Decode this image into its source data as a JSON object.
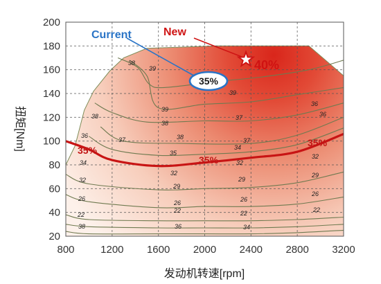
{
  "chart_data": {
    "type": "contour",
    "xlabel": "发动机转速[rpm]",
    "ylabel": "扭矩[Nm]",
    "xlim": [
      800,
      3200
    ],
    "ylim": [
      20,
      200
    ],
    "xticks": [
      "800",
      "1200",
      "1600",
      "2000",
      "2400",
      "2800",
      "3200"
    ],
    "yticks": [
      "20",
      "40",
      "60",
      "80",
      "100",
      "120",
      "140",
      "160",
      "180",
      "200"
    ],
    "grid": true,
    "colors": {
      "hot": "#d9261b",
      "cool": "#fdf1ea",
      "highlight_line": "#c81414",
      "current_bubble": "#2a74c6"
    },
    "annotations": {
      "current": "Current",
      "new": "New",
      "current_value": "35%",
      "new_value": "40%",
      "pct_left": "35%",
      "pct_mid": "35%",
      "pct_right": "35%"
    },
    "contours": [
      {
        "label": "22",
        "points": [
          [
            800,
            24
          ],
          [
            1000,
            22
          ],
          [
            1600,
            22
          ],
          [
            2000,
            22
          ],
          [
            2400,
            22
          ],
          [
            2800,
            23
          ],
          [
            3200,
            25
          ]
        ]
      },
      {
        "label": "26",
        "points": [
          [
            800,
            30
          ],
          [
            1000,
            28
          ],
          [
            1600,
            27
          ],
          [
            2000,
            27
          ],
          [
            2400,
            27
          ],
          [
            2800,
            28
          ],
          [
            3200,
            30
          ]
        ]
      },
      {
        "label": "29",
        "points": [
          [
            800,
            38
          ],
          [
            1000,
            34
          ],
          [
            1600,
            33
          ],
          [
            2000,
            33
          ],
          [
            2400,
            33
          ],
          [
            2800,
            34
          ],
          [
            3200,
            36
          ]
        ]
      },
      {
        "label": "32",
        "points": [
          [
            800,
            55
          ],
          [
            1000,
            49
          ],
          [
            1600,
            44
          ],
          [
            2000,
            45
          ],
          [
            2400,
            45
          ],
          [
            2800,
            47
          ],
          [
            3200,
            53
          ]
        ]
      },
      {
        "label": "34",
        "points": [
          [
            800,
            72
          ],
          [
            1000,
            64
          ],
          [
            1600,
            59
          ],
          [
            2000,
            60
          ],
          [
            2400,
            61
          ],
          [
            2800,
            65
          ],
          [
            3200,
            74
          ]
        ]
      },
      {
        "label": "36",
        "points": [
          [
            1000,
            104
          ],
          [
            1200,
            93
          ],
          [
            1600,
            88
          ],
          [
            2000,
            89
          ],
          [
            2400,
            91
          ],
          [
            2800,
            97
          ],
          [
            3200,
            111
          ]
        ]
      },
      {
        "label": "37",
        "points": [
          [
            1100,
            112
          ],
          [
            1300,
            100
          ],
          [
            1800,
            98
          ],
          [
            2400,
            98
          ],
          [
            2800,
            105
          ],
          [
            3200,
            120
          ]
        ]
      },
      {
        "label": "38",
        "points": [
          [
            1050,
            132
          ],
          [
            1200,
            124
          ],
          [
            1500,
            116
          ],
          [
            2000,
            117
          ],
          [
            2400,
            117
          ],
          [
            2800,
            122
          ],
          [
            3200,
            132
          ]
        ]
      },
      {
        "label": "39",
        "points": [
          [
            1350,
            168
          ],
          [
            1500,
            155
          ],
          [
            1600,
            128
          ],
          [
            2000,
            131
          ],
          [
            2400,
            133
          ],
          [
            2800,
            139
          ],
          [
            3200,
            145
          ]
        ]
      },
      {
        "label": "38",
        "points": [
          [
            1250,
            170
          ],
          [
            1420,
            162
          ],
          [
            1520,
            148
          ],
          [
            1650,
            145
          ],
          [
            2100,
            150
          ],
          [
            2500,
            154
          ],
          [
            2900,
            160
          ],
          [
            3200,
            168
          ]
        ]
      }
    ],
    "highlight_line": {
      "label": "35%",
      "points": [
        [
          800,
          100
        ],
        [
          1000,
          93
        ],
        [
          1200,
          84
        ],
        [
          1600,
          79
        ],
        [
          2000,
          82
        ],
        [
          2400,
          86
        ],
        [
          2800,
          91
        ],
        [
          3200,
          106
        ]
      ]
    },
    "contour_labels": [
      "38",
      "39",
      "38",
      "39",
      "39",
      "38",
      "37",
      "36",
      "37",
      "38",
      "37",
      "36",
      "36",
      "35",
      "34",
      "34",
      "32",
      "32",
      "32",
      "32",
      "29",
      "29",
      "29",
      "26",
      "26",
      "26",
      "26",
      "22",
      "22",
      "22",
      "22",
      "38",
      "36",
      "34"
    ],
    "markers": {
      "current": {
        "x": 1800,
        "y": 154,
        "value": "35%"
      },
      "new": {
        "x": 2550,
        "y": 168,
        "value": "40%"
      }
    }
  }
}
